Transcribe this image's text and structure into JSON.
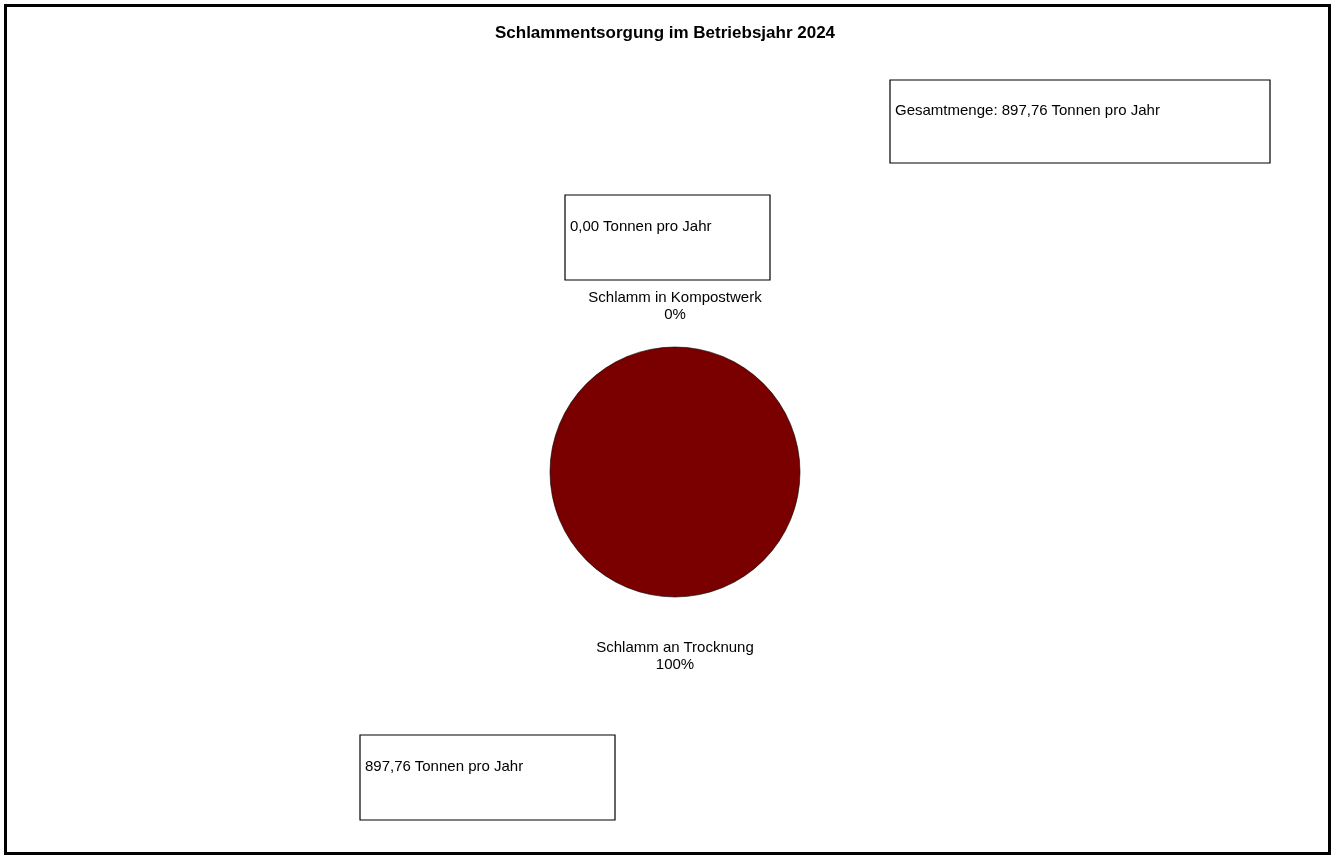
{
  "chart_data": {
    "type": "pie",
    "title": "Schlammentsorgung  im Betriebsjahr 2024",
    "categories": [
      "Schlamm  in Kompostwerk",
      "Schlamm an Trocknung"
    ],
    "values": [
      0,
      100
    ],
    "value_labels": [
      "0%",
      "100%"
    ],
    "colors": [
      "#7a0000",
      "#7a0000"
    ],
    "legend": false,
    "annotations": [
      "Gesamtmenge: 897,76 Tonnen pro Jahr",
      "0,00 Tonnen pro Jahr",
      "897,76 Tonnen pro Jahr"
    ]
  }
}
